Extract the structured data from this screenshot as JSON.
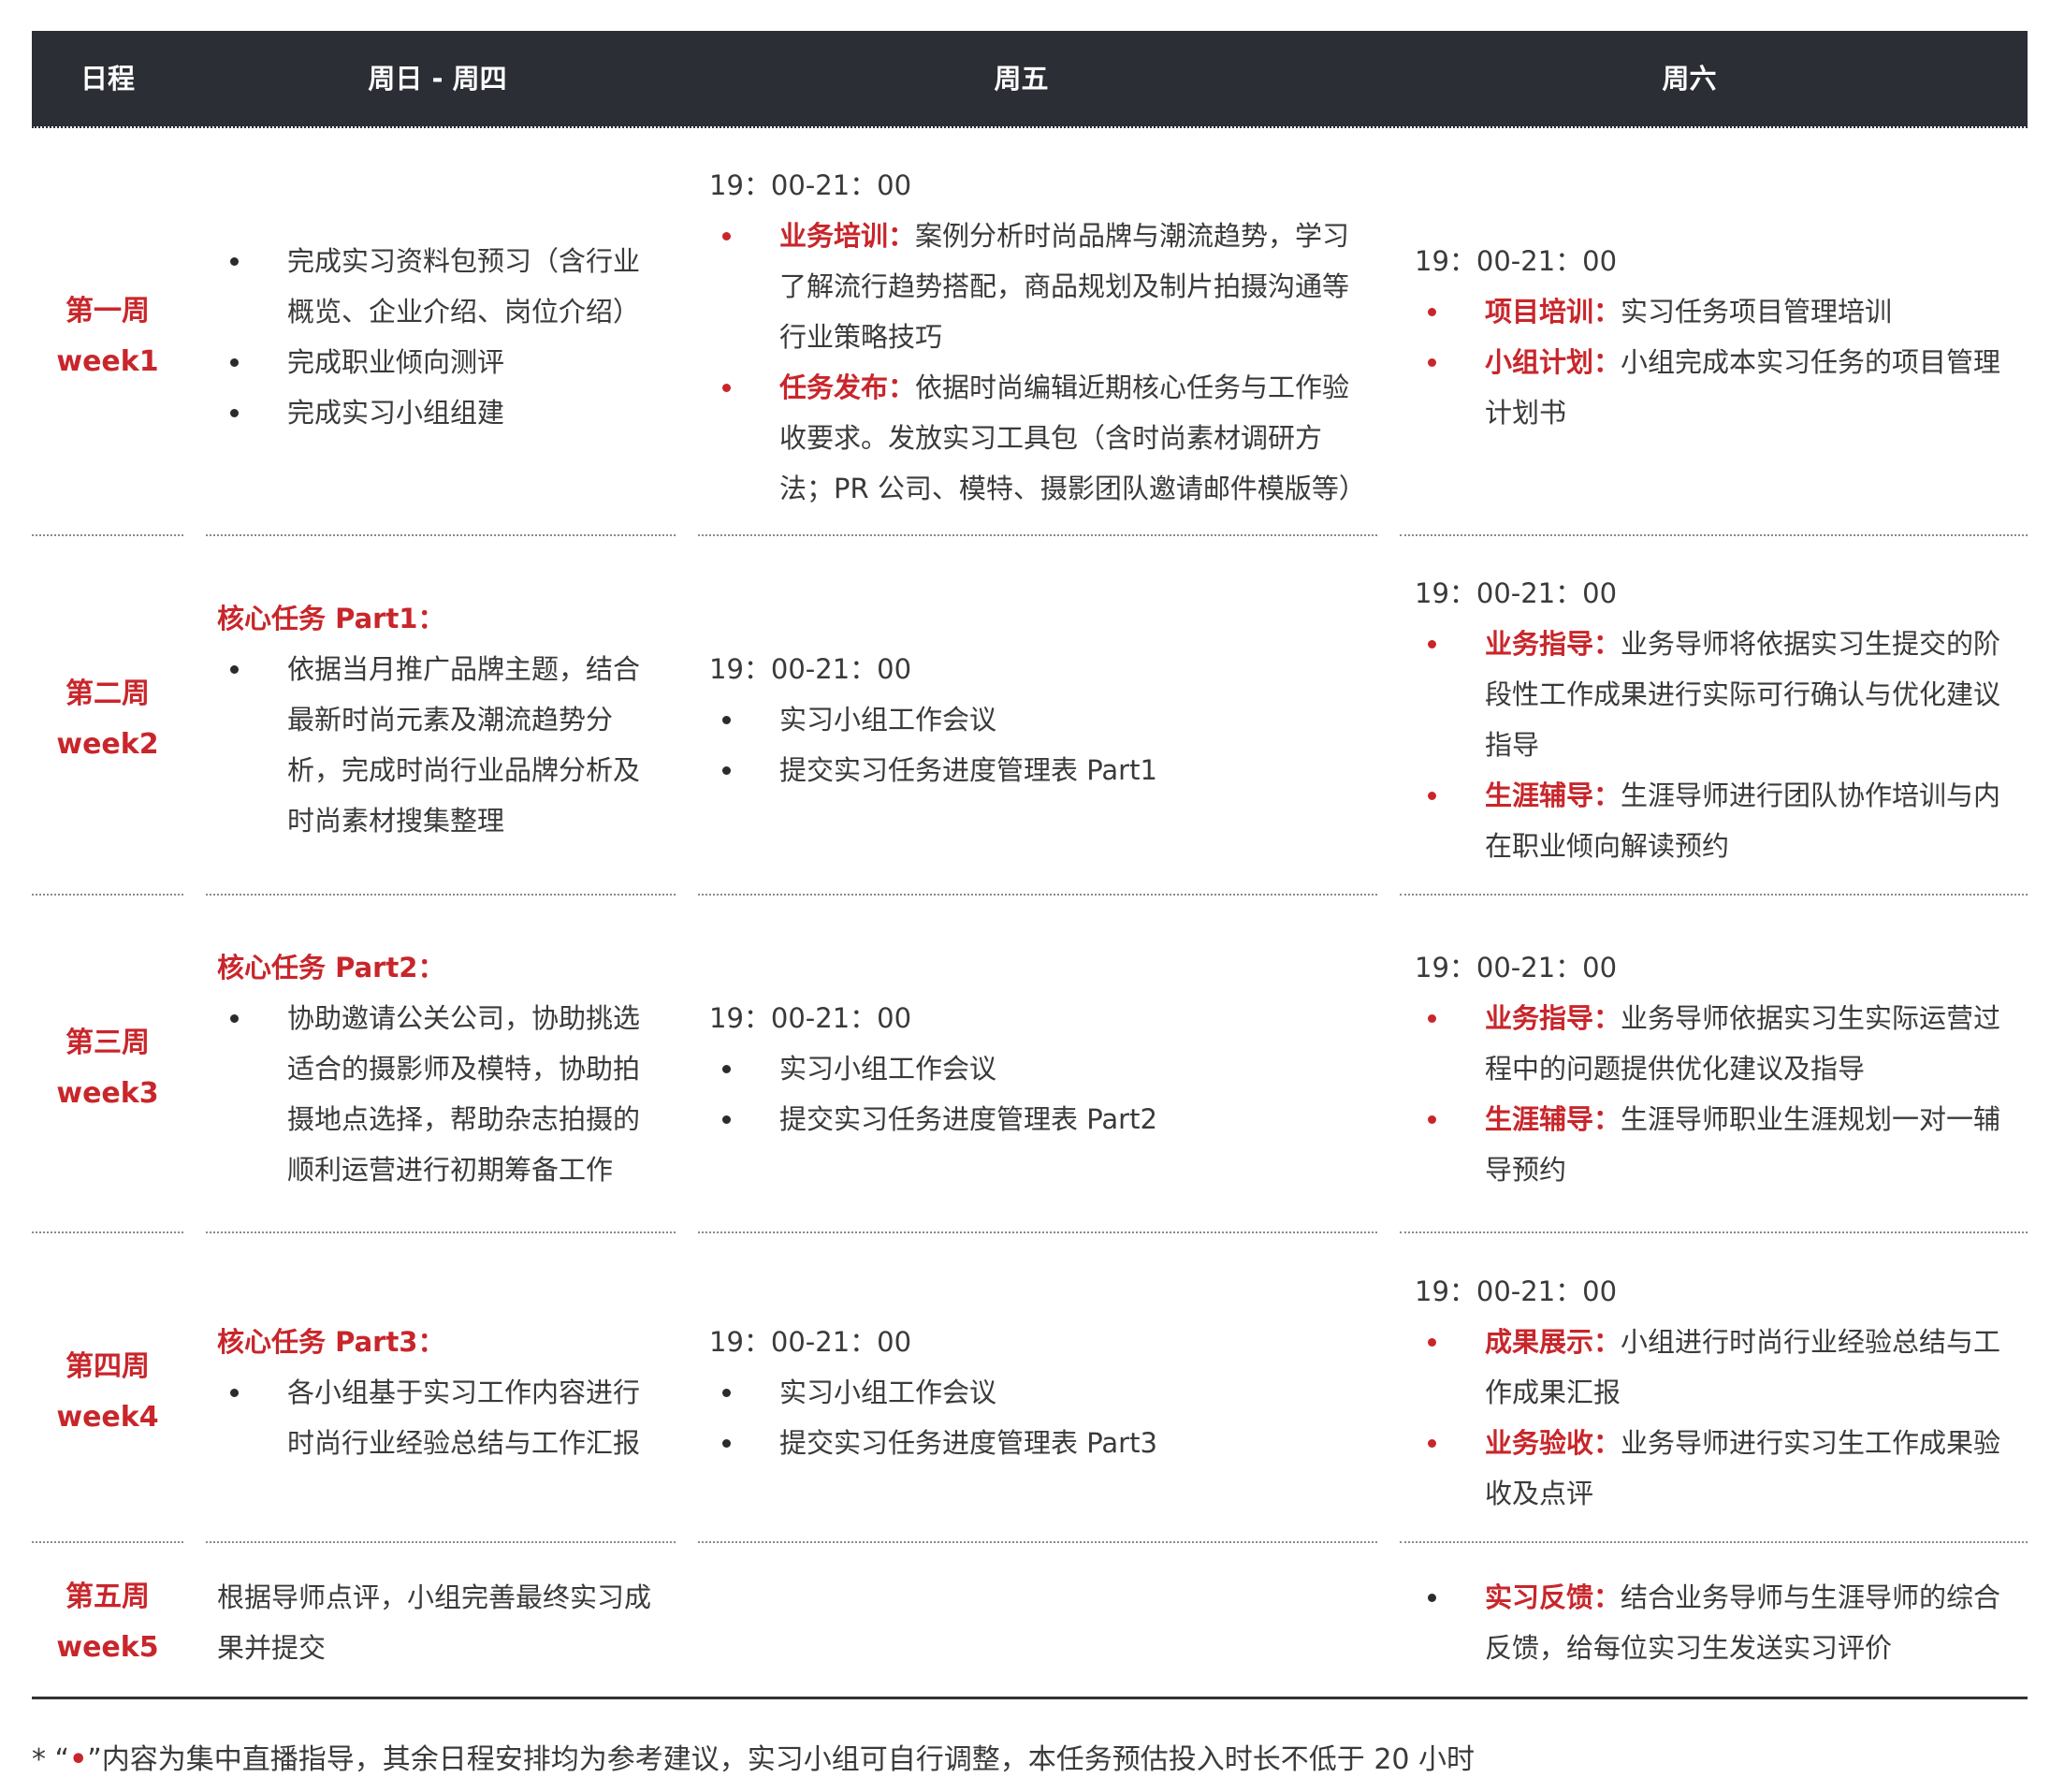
{
  "header": {
    "schedule": "日程",
    "sun_thu": "周日 - 周四",
    "fri": "周五",
    "sat": "周六"
  },
  "rows": [
    {
      "week_cn": "第一周",
      "week_en": "week1",
      "sun_thu": {
        "items": [
          "完成实习资料包预习（含行业概览、企业介绍、岗位介绍）",
          "完成职业倾向测评",
          "完成实习小组组建"
        ]
      },
      "fri": {
        "time": "19：00-21：00",
        "items": [
          {
            "label": "业务培训：",
            "text": "案例分析时尚品牌与潮流趋势，学习了解流行趋势搭配，商品规划及制片拍摄沟通等行业策略技巧"
          },
          {
            "label": "任务发布：",
            "text": "依据时尚编辑近期核心任务与工作验收要求。发放实习工具包（含时尚素材调研方法；PR 公司、模特、摄影团队邀请邮件模版等）"
          }
        ]
      },
      "sat": {
        "time": "19：00-21：00",
        "items": [
          {
            "label": "项目培训：",
            "text": "实习任务项目管理培训"
          },
          {
            "label": "小组计划：",
            "text": "小组完成本实习任务的项目管理计划书"
          }
        ]
      }
    },
    {
      "week_cn": "第二周",
      "week_en": "week2",
      "sun_thu": {
        "title": "核心任务 Part1：",
        "items": [
          "依据当月推广品牌主题，结合最新时尚元素及潮流趋势分析，完成时尚行业品牌分析及时尚素材搜集整理"
        ]
      },
      "fri": {
        "time": "19：00-21：00",
        "items": [
          "实习小组工作会议",
          "提交实习任务进度管理表 Part1"
        ]
      },
      "sat": {
        "time": "19：00-21：00",
        "items": [
          {
            "label": "业务指导：",
            "text": "业务导师将依据实习生提交的阶段性工作成果进行实际可行确认与优化建议指导"
          },
          {
            "label": "生涯辅导：",
            "text": "生涯导师进行团队协作培训与内在职业倾向解读预约"
          }
        ]
      }
    },
    {
      "week_cn": "第三周",
      "week_en": "week3",
      "sun_thu": {
        "title": "核心任务 Part2：",
        "items": [
          "协助邀请公关公司，协助挑选适合的摄影师及模特，协助拍摄地点选择，帮助杂志拍摄的顺利运营进行初期筹备工作"
        ]
      },
      "fri": {
        "time": "19：00-21：00",
        "items": [
          "实习小组工作会议",
          "提交实习任务进度管理表 Part2"
        ]
      },
      "sat": {
        "time": "19：00-21：00",
        "items": [
          {
            "label": "业务指导：",
            "text": "业务导师依据实习生实际运营过程中的问题提供优化建议及指导"
          },
          {
            "label": "生涯辅导：",
            "text": "生涯导师职业生涯规划一对一辅导预约"
          }
        ]
      }
    },
    {
      "week_cn": "第四周",
      "week_en": "week4",
      "sun_thu": {
        "title": "核心任务 Part3：",
        "items": [
          "各小组基于实习工作内容进行时尚行业经验总结与工作汇报"
        ]
      },
      "fri": {
        "time": "19：00-21：00",
        "items": [
          "实习小组工作会议",
          "提交实习任务进度管理表 Part3"
        ]
      },
      "sat": {
        "time": "19：00-21：00",
        "items": [
          {
            "label": "成果展示：",
            "text": "小组进行时尚行业经验总结与工作成果汇报"
          },
          {
            "label": "业务验收：",
            "text": "业务导师进行实习生工作成果验收及点评"
          }
        ]
      }
    },
    {
      "week_cn": "第五周",
      "week_en": "week5",
      "sun_thu": {
        "text": "根据导师点评，小组完善最终实习成果并提交"
      },
      "sat": {
        "items": [
          {
            "label": "实习反馈：",
            "text": "结合业务导师与生涯导师的综合反馈，给每位实习生发送实习评价"
          }
        ]
      }
    }
  ],
  "footnote": {
    "prefix": "* “",
    "dot": "•",
    "suffix": "”内容为集中直播指导，其余日程安排均为参考建议，实习小组可自行调整，本任务预估投入时长不低于 20 小时"
  },
  "colors": {
    "header_bg": "#2b2e34",
    "accent_red": "#c8262b"
  }
}
